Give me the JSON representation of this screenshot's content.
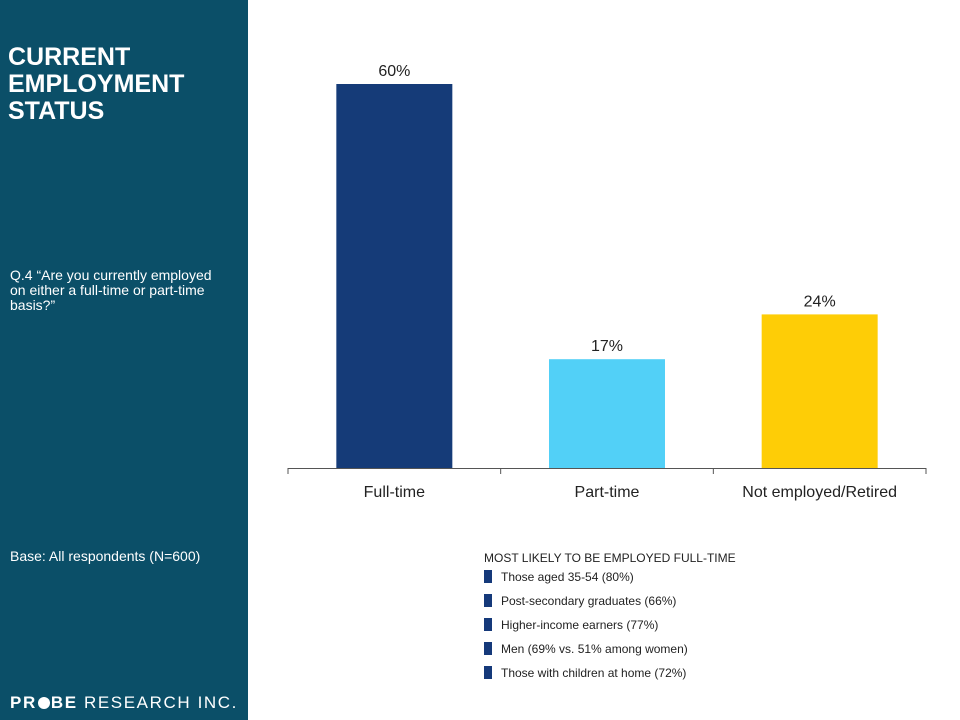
{
  "sidebar": {
    "title_lines": [
      "CURRENT",
      "EMPLOYMENT",
      "STATUS"
    ],
    "question": "Q.4 “Are you currently employed on either a full-time or part-time basis?”",
    "base": "Base: All respondents (N=600)",
    "logo": {
      "part1": "PR",
      "part2": "BE",
      "part3": " RESEARCH INC."
    },
    "background_color": "#0b4f68"
  },
  "chart_data": {
    "type": "bar",
    "title": "",
    "xlabel": "",
    "ylabel": "",
    "categories": [
      "Full-time",
      "Part-time",
      "Not employed/Retired"
    ],
    "values": [
      60,
      17,
      24
    ],
    "value_labels": [
      "60%",
      "17%",
      "24%"
    ],
    "colors": [
      "#153b78",
      "#52d0f7",
      "#fecd06"
    ],
    "ylim": [
      0,
      70
    ],
    "grid": false,
    "legend": "none"
  },
  "notes": {
    "title": "MOST LIKELY TO BE EMPLOYED FULL-TIME",
    "items": [
      "Those aged 35-54 (80%)",
      "Post-secondary graduates (66%)",
      "Higher-income earners (77%)",
      "Men (69% vs. 51% among women)",
      "Those with children at home (72%)"
    ],
    "bullet_color": "#15397a"
  }
}
